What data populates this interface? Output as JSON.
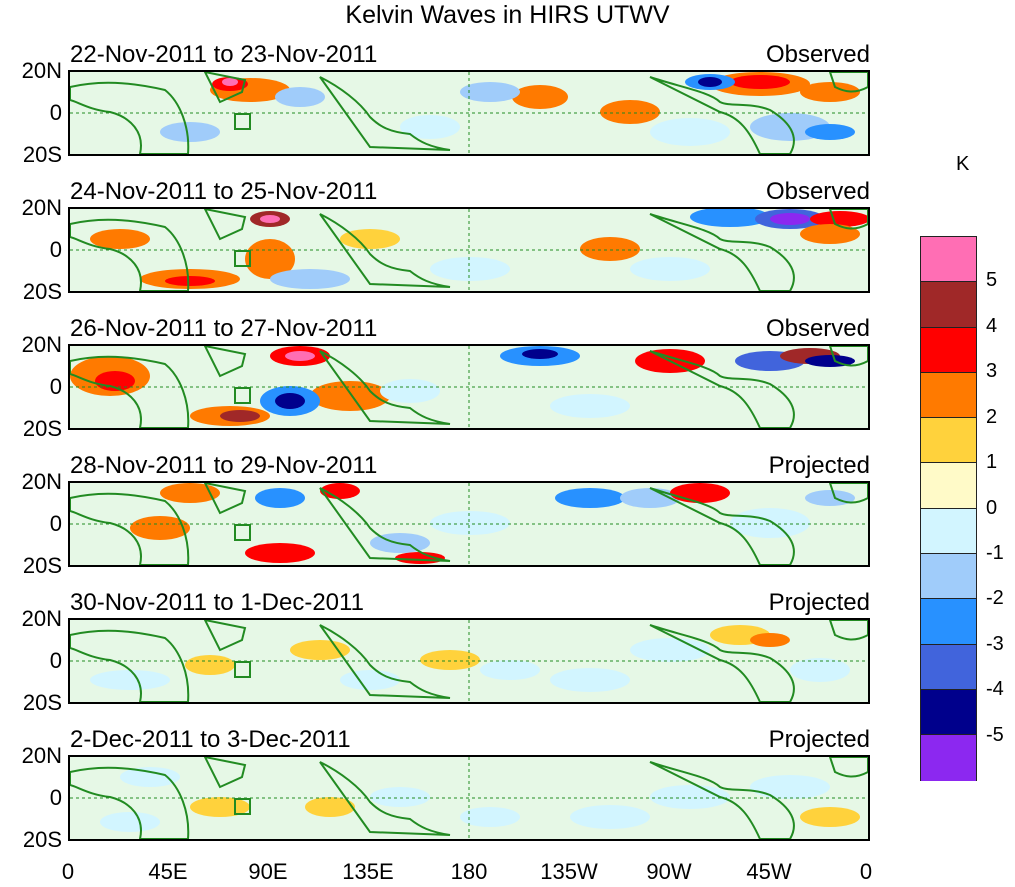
{
  "title": "Kelvin Waves in HIRS UTWV",
  "unit": "K",
  "y_labels": [
    "20N",
    "0",
    "20S"
  ],
  "x_labels": [
    "0",
    "45E",
    "90E",
    "135E",
    "180",
    "135W",
    "90W",
    "45W",
    "0"
  ],
  "panels": [
    {
      "date": "22-Nov-2011 to 23-Nov-2011",
      "mode": "Observed"
    },
    {
      "date": "24-Nov-2011 to 25-Nov-2011",
      "mode": "Observed"
    },
    {
      "date": "26-Nov-2011 to 27-Nov-2011",
      "mode": "Observed"
    },
    {
      "date": "28-Nov-2011 to 29-Nov-2011",
      "mode": "Projected"
    },
    {
      "date": "30-Nov-2011 to 1-Dec-2011",
      "mode": "Projected"
    },
    {
      "date": "2-Dec-2011 to 3-Dec-2011",
      "mode": "Projected"
    }
  ],
  "colorbar": {
    "colors": [
      "#ff6eb4",
      "#a02828",
      "#ff0000",
      "#ff7a00",
      "#ffd23c",
      "#fffac8",
      "#d2f5ff",
      "#a0ccfa",
      "#2891ff",
      "#4164dc",
      "#00008c",
      "#8c28f0"
    ],
    "labels": [
      "5",
      "4",
      "3",
      "2",
      "1",
      "0",
      "-1",
      "-2",
      "-3",
      "-4",
      "-5"
    ]
  },
  "colors": {
    "coast": "#228b22",
    "ocean_base": "#fffac8",
    "grid": "#228b22"
  }
}
